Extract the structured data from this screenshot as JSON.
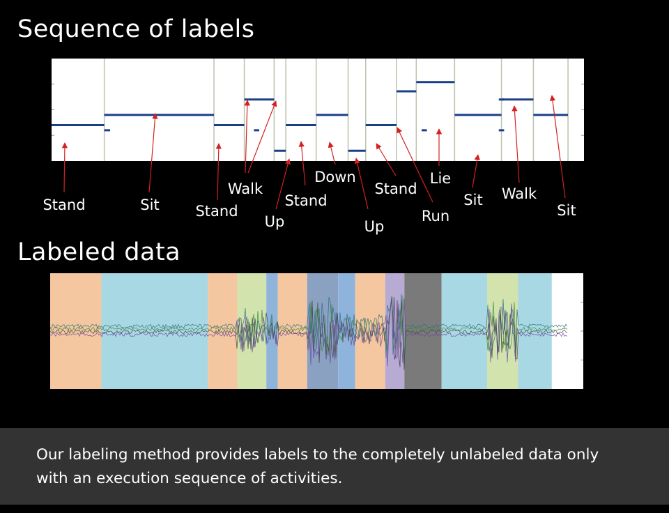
{
  "titles": {
    "sequence": "Sequence of labels",
    "labeled": "Labeled data"
  },
  "sequence_labels": [
    "Stand",
    "Sit",
    "Stand",
    "Walk",
    "Up",
    "Stand",
    "Down",
    "Up",
    "Stand",
    "Run",
    "Lie",
    "Sit",
    "Walk",
    "Sit"
  ],
  "segments": [
    {
      "label": "Stand",
      "level": 0.35,
      "start": 0.0,
      "end": 0.099
    },
    {
      "label": "Sit",
      "level": 0.45,
      "start": 0.099,
      "end": 0.305
    },
    {
      "label": "Stand",
      "level": 0.35,
      "start": 0.305,
      "end": 0.362
    },
    {
      "label": "Walk",
      "level": 0.6,
      "start": 0.362,
      "end": 0.418
    },
    {
      "label": "Up",
      "level": 0.1,
      "start": 0.418,
      "end": 0.44
    },
    {
      "label": "Stand",
      "level": 0.35,
      "start": 0.44,
      "end": 0.497
    },
    {
      "label": "Down",
      "level": 0.45,
      "start": 0.497,
      "end": 0.557
    },
    {
      "label": "Up",
      "level": 0.1,
      "start": 0.557,
      "end": 0.59
    },
    {
      "label": "Stand",
      "level": 0.35,
      "start": 0.59,
      "end": 0.648
    },
    {
      "label": "Run",
      "level": 0.68,
      "start": 0.648,
      "end": 0.685
    },
    {
      "label": "Lie",
      "level": 0.77,
      "start": 0.685,
      "end": 0.757
    },
    {
      "label": "Sit",
      "level": 0.45,
      "start": 0.757,
      "end": 0.845
    },
    {
      "label": "Walk",
      "level": 0.6,
      "start": 0.845,
      "end": 0.905
    },
    {
      "label": "Sit",
      "level": 0.45,
      "start": 0.905,
      "end": 0.97
    }
  ],
  "colors": {
    "Stand": "#f5c7a0",
    "Sit": "#a8d8e4",
    "Walk": "#d2e3ae",
    "Up": "#8fb4dc",
    "Down": "#8aa1c2",
    "Run": "#b7aad3",
    "Lie": "#7a7a7a",
    "trace": "#1a3f87",
    "signal": "#2b6e8a"
  },
  "footer": {
    "line1": "Our labeling method provides labels to the completely unlabeled data only",
    "line2": "with an execution sequence of activities."
  }
}
